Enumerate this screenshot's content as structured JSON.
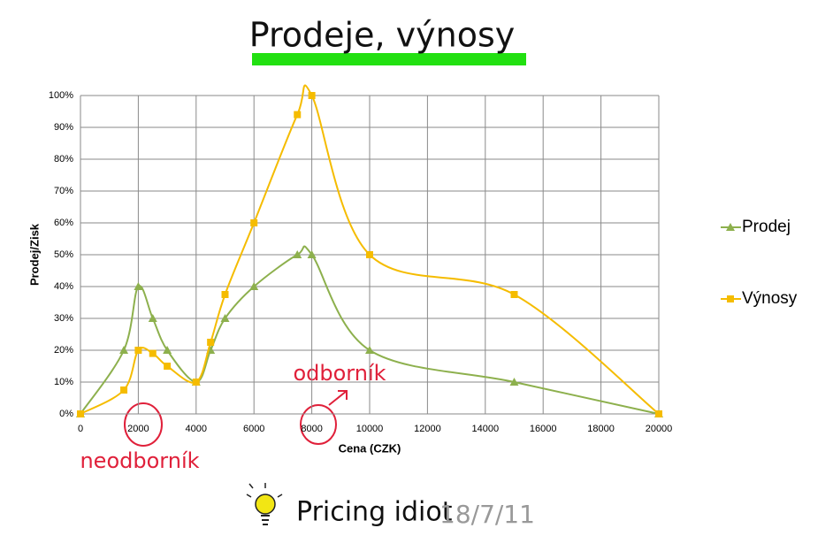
{
  "chart_data": {
    "type": "line",
    "title": "Prodeje, výnosy",
    "x_label": "Cena (CZK)",
    "y_label": "Prodej/Zisk",
    "xlim": [
      0,
      20000
    ],
    "xticks": [
      0,
      2000,
      4000,
      6000,
      8000,
      10000,
      12000,
      14000,
      16000,
      18000,
      20000
    ],
    "ylim": [
      0,
      100
    ],
    "yticks": [
      {
        "value": 0,
        "label": "0%"
      },
      {
        "value": 10,
        "label": "10%"
      },
      {
        "value": 20,
        "label": "20%"
      },
      {
        "value": 30,
        "label": "30%"
      },
      {
        "value": 40,
        "label": "40%"
      },
      {
        "value": 50,
        "label": "50%"
      },
      {
        "value": 60,
        "label": "60%"
      },
      {
        "value": 70,
        "label": "70%"
      },
      {
        "value": 80,
        "label": "80%"
      },
      {
        "value": 90,
        "label": "90%"
      },
      {
        "value": 100,
        "label": "100%"
      }
    ],
    "grid": true,
    "legend": "right",
    "series": [
      {
        "name": "Prodej",
        "color": "#8db04d",
        "marker": "triangle",
        "x": [
          0,
          1500,
          2000,
          2500,
          3000,
          4000,
          4500,
          5000,
          6000,
          7500,
          8000,
          10000,
          15000,
          20000
        ],
        "values": [
          0,
          20,
          40,
          30,
          20,
          10,
          20,
          30,
          40,
          50,
          50,
          20,
          10,
          0
        ]
      },
      {
        "name": "Výnosy",
        "color": "#f5bc00",
        "marker": "square",
        "x": [
          0,
          1500,
          2000,
          2500,
          3000,
          4000,
          4500,
          5000,
          6000,
          7500,
          8000,
          10000,
          15000,
          20000
        ],
        "values": [
          0,
          7.5,
          20,
          19,
          15,
          10,
          22.5,
          37.5,
          60,
          94,
          100,
          50,
          37.5,
          0
        ]
      }
    ],
    "annotations": [
      "odborník",
      "neodborník"
    ],
    "footer": {
      "brand": "Pricing idiot",
      "date": "18/7/11"
    }
  }
}
